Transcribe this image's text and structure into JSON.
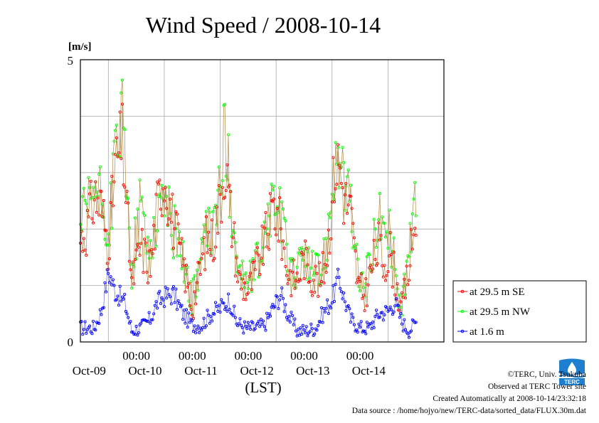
{
  "chart_data": {
    "type": "line",
    "title": "Wind Speed / 2008-10-14",
    "ylabel": "[m/s]",
    "xlabel": "(LST)",
    "ylim": [
      0,
      5
    ],
    "yticks": [
      "0",
      "5"
    ],
    "xlim": [
      "2008-10-08T12:00",
      "2008-10-14T24:00"
    ],
    "time_ticks": [
      "00:00",
      "00:00",
      "00:00",
      "00:00",
      "00:00"
    ],
    "date_labels": [
      "Oct-09",
      "Oct-10",
      "Oct-11",
      "Oct-12",
      "Oct-13",
      "Oct-14"
    ],
    "grid": true,
    "legend_position": "right",
    "series": [
      {
        "name": "at 29.5 m SE",
        "color": "#ff0000",
        "anchors": [
          [
            "2008-10-08T12:00",
            1.8
          ],
          [
            "2008-10-08T15:00",
            2.05
          ],
          [
            "2008-10-08T18:00",
            2.6
          ],
          [
            "2008-10-08T21:00",
            2.4
          ],
          [
            "2008-10-09T00:00",
            1.7
          ],
          [
            "2008-10-09T03:00",
            3.1
          ],
          [
            "2008-10-09T06:00",
            3.55
          ],
          [
            "2008-10-09T08:00",
            2.3
          ],
          [
            "2008-10-09T10:00",
            1.05
          ],
          [
            "2008-10-09T14:00",
            1.7
          ],
          [
            "2008-10-09T18:00",
            1.3
          ],
          [
            "2008-10-09T21:00",
            2.4
          ],
          [
            "2008-10-10T00:00",
            3.0
          ],
          [
            "2008-10-10T03:00",
            2.3
          ],
          [
            "2008-10-10T06:00",
            1.75
          ],
          [
            "2008-10-10T09:00",
            1.2
          ],
          [
            "2008-10-10T12:00",
            0.6
          ],
          [
            "2008-10-10T15:00",
            1.2
          ],
          [
            "2008-10-10T18:00",
            1.8
          ],
          [
            "2008-10-10T21:00",
            1.8
          ],
          [
            "2008-10-11T00:00",
            2.5
          ],
          [
            "2008-10-11T02:00",
            3.2
          ],
          [
            "2008-10-11T05:00",
            2.1
          ],
          [
            "2008-10-11T08:00",
            1.1
          ],
          [
            "2008-10-11T12:00",
            0.9
          ],
          [
            "2008-10-11T16:00",
            1.35
          ],
          [
            "2008-10-11T20:00",
            1.9
          ],
          [
            "2008-10-11T23:00",
            2.4
          ],
          [
            "2008-10-12T02:00",
            2.0
          ],
          [
            "2008-10-12T05:00",
            1.2
          ],
          [
            "2008-10-12T09:00",
            1.1
          ],
          [
            "2008-10-12T12:00",
            1.5
          ],
          [
            "2008-10-12T15:00",
            1.2
          ],
          [
            "2008-10-12T19:00",
            1.05
          ],
          [
            "2008-10-12T22:00",
            1.6
          ],
          [
            "2008-10-13T01:00",
            3.0
          ],
          [
            "2008-10-13T03:00",
            3.2
          ],
          [
            "2008-10-13T05:00",
            2.6
          ],
          [
            "2008-10-13T08:00",
            2.3
          ],
          [
            "2008-10-13T11:00",
            1.0
          ],
          [
            "2008-10-13T14:00",
            0.8
          ],
          [
            "2008-10-13T17:00",
            1.3
          ],
          [
            "2008-10-13T20:00",
            1.7
          ],
          [
            "2008-10-13T22:00",
            1.4
          ],
          [
            "2008-10-14T01:00",
            1.6
          ],
          [
            "2008-10-14T04:00",
            0.9
          ],
          [
            "2008-10-14T06:00",
            0.6
          ],
          [
            "2008-10-14T09:00",
            1.3
          ],
          [
            "2008-10-14T11:00",
            1.9
          ],
          [
            "2008-10-14T12:00",
            2.3
          ]
        ]
      },
      {
        "name": "at 29.5 m NW",
        "color": "#00ff00",
        "anchors": [
          [
            "2008-10-08T12:00",
            2.1
          ],
          [
            "2008-10-08T15:00",
            2.3
          ],
          [
            "2008-10-08T18:00",
            2.75
          ],
          [
            "2008-10-08T21:00",
            2.5
          ],
          [
            "2008-10-09T00:00",
            1.8
          ],
          [
            "2008-10-09T03:00",
            3.4
          ],
          [
            "2008-10-09T06:00",
            3.9
          ],
          [
            "2008-10-09T08:00",
            2.5
          ],
          [
            "2008-10-09T10:00",
            1.3
          ],
          [
            "2008-10-09T14:00",
            2.5
          ],
          [
            "2008-10-09T17:00",
            1.6
          ],
          [
            "2008-10-09T21:00",
            2.2
          ],
          [
            "2008-10-10T00:00",
            2.7
          ],
          [
            "2008-10-10T03:00",
            2.0
          ],
          [
            "2008-10-10T06:00",
            1.9
          ],
          [
            "2008-10-10T09:00",
            1.3
          ],
          [
            "2008-10-10T12:00",
            0.7
          ],
          [
            "2008-10-10T15:00",
            1.4
          ],
          [
            "2008-10-10T18:00",
            1.9
          ],
          [
            "2008-10-10T21:00",
            2.0
          ],
          [
            "2008-10-11T00:00",
            2.8
          ],
          [
            "2008-10-11T02:00",
            3.7
          ],
          [
            "2008-10-11T05:00",
            2.4
          ],
          [
            "2008-10-11T08:00",
            1.3
          ],
          [
            "2008-10-11T12:00",
            1.0
          ],
          [
            "2008-10-11T16:00",
            1.4
          ],
          [
            "2008-10-11T20:00",
            2.0
          ],
          [
            "2008-10-11T23:00",
            2.6
          ],
          [
            "2008-10-12T02:00",
            2.2
          ],
          [
            "2008-10-12T05:00",
            1.5
          ],
          [
            "2008-10-12T09:00",
            1.2
          ],
          [
            "2008-10-12T12:00",
            1.6
          ],
          [
            "2008-10-12T15:00",
            1.3
          ],
          [
            "2008-10-12T19:00",
            1.2
          ],
          [
            "2008-10-12T22:00",
            1.9
          ],
          [
            "2008-10-13T01:00",
            3.2
          ],
          [
            "2008-10-13T03:00",
            3.3
          ],
          [
            "2008-10-13T05:00",
            2.8
          ],
          [
            "2008-10-13T08:00",
            2.4
          ],
          [
            "2008-10-13T11:00",
            1.2
          ],
          [
            "2008-10-13T14:00",
            1.0
          ],
          [
            "2008-10-13T17:00",
            1.5
          ],
          [
            "2008-10-13T20:00",
            2.5
          ],
          [
            "2008-10-13T22:00",
            1.8
          ],
          [
            "2008-10-14T01:00",
            1.9
          ],
          [
            "2008-10-14T04:00",
            1.0
          ],
          [
            "2008-10-14T06:00",
            0.7
          ],
          [
            "2008-10-14T09:00",
            1.5
          ],
          [
            "2008-10-14T11:00",
            2.3
          ],
          [
            "2008-10-14T12:00",
            2.85
          ]
        ]
      },
      {
        "name": "at 1.6 m",
        "color": "#0000ff",
        "anchors": [
          [
            "2008-10-08T12:00",
            0.25
          ],
          [
            "2008-10-08T18:00",
            0.25
          ],
          [
            "2008-10-08T21:00",
            0.55
          ],
          [
            "2008-10-09T00:00",
            1.25
          ],
          [
            "2008-10-09T03:00",
            0.9
          ],
          [
            "2008-10-09T07:00",
            0.7
          ],
          [
            "2008-10-09T10:00",
            0.2
          ],
          [
            "2008-10-09T14:00",
            0.25
          ],
          [
            "2008-10-09T18:00",
            0.4
          ],
          [
            "2008-10-09T21:00",
            0.7
          ],
          [
            "2008-10-10T00:00",
            0.8
          ],
          [
            "2008-10-10T04:00",
            0.85
          ],
          [
            "2008-10-10T08:00",
            0.5
          ],
          [
            "2008-10-10T12:00",
            0.3
          ],
          [
            "2008-10-10T16:00",
            0.3
          ],
          [
            "2008-10-10T20:00",
            0.5
          ],
          [
            "2008-10-11T00:00",
            0.6
          ],
          [
            "2008-10-11T04:00",
            0.75
          ],
          [
            "2008-10-11T07:00",
            0.35
          ],
          [
            "2008-10-11T11:00",
            0.25
          ],
          [
            "2008-10-11T15:00",
            0.25
          ],
          [
            "2008-10-11T19:00",
            0.3
          ],
          [
            "2008-10-11T22:00",
            0.55
          ],
          [
            "2008-10-12T02:00",
            0.85
          ],
          [
            "2008-10-12T05:00",
            0.5
          ],
          [
            "2008-10-12T09:00",
            0.2
          ],
          [
            "2008-10-12T13:00",
            0.2
          ],
          [
            "2008-10-12T17:00",
            0.25
          ],
          [
            "2008-10-12T20:00",
            0.5
          ],
          [
            "2008-10-13T00:00",
            0.75
          ],
          [
            "2008-10-13T03:00",
            1.15
          ],
          [
            "2008-10-13T05:00",
            0.8
          ],
          [
            "2008-10-13T08:00",
            0.4
          ],
          [
            "2008-10-13T12:00",
            0.25
          ],
          [
            "2008-10-13T16:00",
            0.25
          ],
          [
            "2008-10-13T20:00",
            0.5
          ],
          [
            "2008-10-14T00:00",
            0.55
          ],
          [
            "2008-10-14T03:00",
            0.7
          ],
          [
            "2008-10-14T06:00",
            0.35
          ],
          [
            "2008-10-14T09:00",
            0.2
          ],
          [
            "2008-10-14T12:00",
            0.35
          ]
        ]
      }
    ]
  },
  "credits": {
    "copyright": "©TERC, Univ. Tsukuba",
    "observed": "Observed at TERC Tower site",
    "created": "Created Automatically at 2008-10-14/23:32:18",
    "source": "Data source : /home/hojyo/new/TERC-data/sorted_data/FLUX.30m.dat"
  },
  "logo": {
    "text": "TERC",
    "color": "#1e7fd0"
  }
}
